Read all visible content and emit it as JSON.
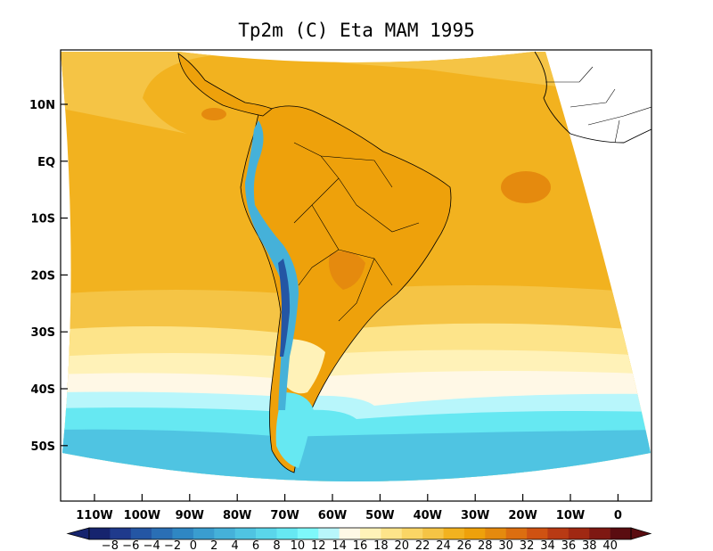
{
  "title": "Tp2m (C) Eta MAM 1995",
  "lat_labels": [
    "10N",
    "EQ",
    "10S",
    "20S",
    "30S",
    "40S",
    "50S"
  ],
  "lon_labels": [
    "110W",
    "100W",
    "90W",
    "80W",
    "70W",
    "60W",
    "50W",
    "40W",
    "30W",
    "20W",
    "10W",
    "0"
  ],
  "colorbar": {
    "labels": [
      "-8",
      "-6",
      "-4",
      "-2",
      "0",
      "2",
      "4",
      "6",
      "8",
      "10",
      "12",
      "14",
      "16",
      "18",
      "20",
      "22",
      "24",
      "26",
      "28",
      "30",
      "32",
      "34",
      "36",
      "38",
      "40"
    ],
    "colors": [
      "#16246e",
      "#1f3a8c",
      "#2456a4",
      "#2a6fb5",
      "#2f87c3",
      "#3a9dcf",
      "#45b1d9",
      "#4fc4e2",
      "#5ad6ea",
      "#66e8f2",
      "#7ef8fb",
      "#b8f6fb",
      "#fff8e6",
      "#fff2b8",
      "#fde48a",
      "#fad565",
      "#f5c445",
      "#f2b21f",
      "#eea10b",
      "#e58a0e",
      "#dc6e10",
      "#cf5212",
      "#b83a14",
      "#a02812",
      "#7e1812",
      "#5a0c10"
    ]
  },
  "map_colors": {
    "ocean_warm": "#f2b21f",
    "ocean_mid": "#f5c445",
    "ocean_light": "#fde48a",
    "ocean_pale": "#fff2b8",
    "ocean_cream": "#fff8e6",
    "ocean_cyan_pale": "#b8f6fb",
    "ocean_cyan": "#66e8f2",
    "ocean_cyan_mid": "#4fc4e2",
    "land_warm": "#eea10b",
    "land_hot": "#e58a0e",
    "andes_cool": "#45b1d9",
    "andes_cold": "#2456a4"
  }
}
